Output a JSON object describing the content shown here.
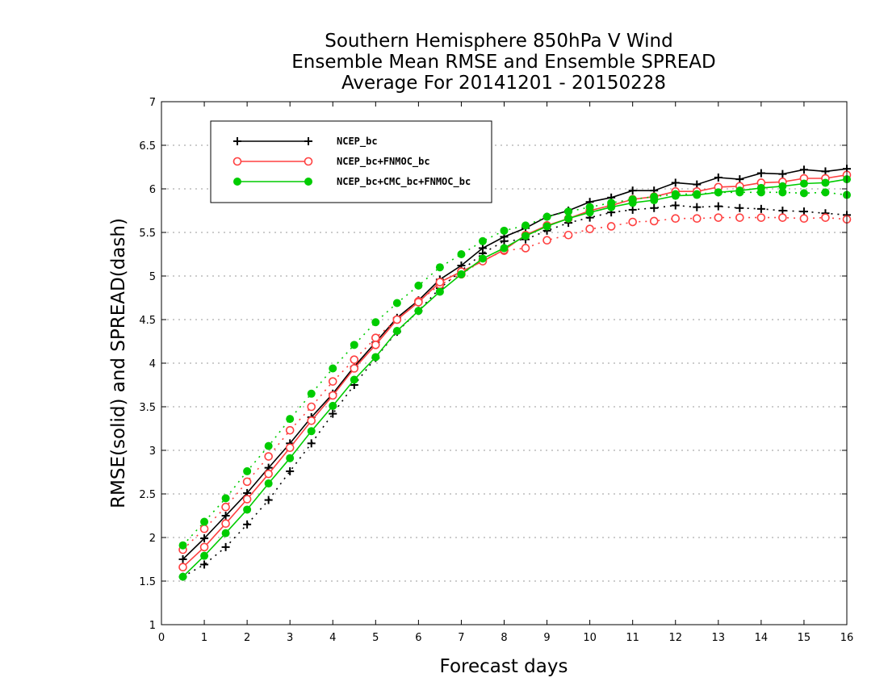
{
  "chart_data": {
    "type": "line",
    "title": [
      "Southern Hemisphere 850hPa V Wind",
      "Ensemble Mean RMSE and Ensemble SPREAD",
      "Average For 20141201 - 20150228"
    ],
    "xlabel": "Forecast days",
    "ylabel": "RMSE(solid) and SPREAD(dash)",
    "xlim": [
      0,
      16
    ],
    "ylim": [
      1,
      7
    ],
    "xticks": [
      "0",
      "1",
      "2",
      "3",
      "4",
      "5",
      "6",
      "7",
      "8",
      "9",
      "10",
      "11",
      "12",
      "13",
      "14",
      "15",
      "16"
    ],
    "yticks": [
      "1",
      "1.5",
      "2",
      "2.5",
      "3",
      "3.5",
      "4",
      "4.5",
      "5",
      "5.5",
      "6",
      "6.5",
      "7"
    ],
    "grid": "horizontal dotted",
    "legend_position": "top-left",
    "x": [
      0.5,
      1,
      1.5,
      2,
      2.5,
      3,
      3.5,
      4,
      4.5,
      5,
      5.5,
      6,
      6.5,
      7,
      7.5,
      8,
      8.5,
      9,
      9.5,
      10,
      10.5,
      11,
      11.5,
      12,
      12.5,
      13,
      13.5,
      14,
      14.5,
      15,
      15.5,
      16
    ],
    "series": [
      {
        "name": "NCEP_bc",
        "color": "#000000",
        "marker": "plus",
        "rmse": [
          1.75,
          1.99,
          2.25,
          2.51,
          2.8,
          3.08,
          3.38,
          3.65,
          3.96,
          4.24,
          4.52,
          4.72,
          4.96,
          5.12,
          5.32,
          5.45,
          5.55,
          5.68,
          5.75,
          5.85,
          5.9,
          5.98,
          5.98,
          6.07,
          6.05,
          6.13,
          6.11,
          6.18,
          6.17,
          6.22,
          6.2,
          6.23
        ],
        "spread": [
          1.55,
          1.69,
          1.89,
          2.15,
          2.43,
          2.76,
          3.08,
          3.42,
          3.75,
          4.06,
          4.36,
          4.6,
          4.86,
          5.06,
          5.26,
          5.4,
          5.42,
          5.52,
          5.61,
          5.67,
          5.73,
          5.76,
          5.78,
          5.81,
          5.79,
          5.8,
          5.78,
          5.77,
          5.75,
          5.74,
          5.72,
          5.7
        ]
      },
      {
        "name": "NCEP_bc+FNMOC_bc",
        "color": "#ff4040",
        "marker": "open-circle",
        "rmse": [
          1.66,
          1.89,
          2.16,
          2.44,
          2.73,
          3.03,
          3.34,
          3.63,
          3.94,
          4.21,
          4.5,
          4.7,
          4.93,
          5.05,
          5.17,
          5.3,
          5.47,
          5.58,
          5.66,
          5.75,
          5.81,
          5.88,
          5.91,
          5.97,
          5.97,
          6.02,
          6.03,
          6.07,
          6.08,
          6.12,
          6.12,
          6.16
        ],
        "spread": [
          1.86,
          2.1,
          2.35,
          2.64,
          2.93,
          3.23,
          3.5,
          3.79,
          4.04,
          4.29,
          4.5,
          4.71,
          4.9,
          5.02,
          5.18,
          5.29,
          5.32,
          5.41,
          5.47,
          5.54,
          5.57,
          5.62,
          5.63,
          5.66,
          5.66,
          5.67,
          5.67,
          5.67,
          5.67,
          5.66,
          5.67,
          5.65
        ]
      },
      {
        "name": "NCEP_bc+CMC_bc+FNMOC_bc",
        "color": "#00cc00",
        "marker": "filled-circle",
        "rmse": [
          1.55,
          1.79,
          2.05,
          2.32,
          2.62,
          2.91,
          3.22,
          3.51,
          3.81,
          4.07,
          4.37,
          4.6,
          4.82,
          5.02,
          5.2,
          5.32,
          5.46,
          5.57,
          5.66,
          5.73,
          5.79,
          5.84,
          5.87,
          5.92,
          5.93,
          5.96,
          5.98,
          6.01,
          6.03,
          6.06,
          6.07,
          6.11
        ],
        "spread": [
          1.91,
          2.18,
          2.45,
          2.76,
          3.05,
          3.36,
          3.65,
          3.94,
          4.21,
          4.47,
          4.69,
          4.89,
          5.1,
          5.25,
          5.4,
          5.52,
          5.58,
          5.68,
          5.74,
          5.79,
          5.84,
          5.88,
          5.91,
          5.94,
          5.94,
          5.96,
          5.96,
          5.96,
          5.96,
          5.95,
          5.96,
          5.93
        ]
      }
    ]
  }
}
